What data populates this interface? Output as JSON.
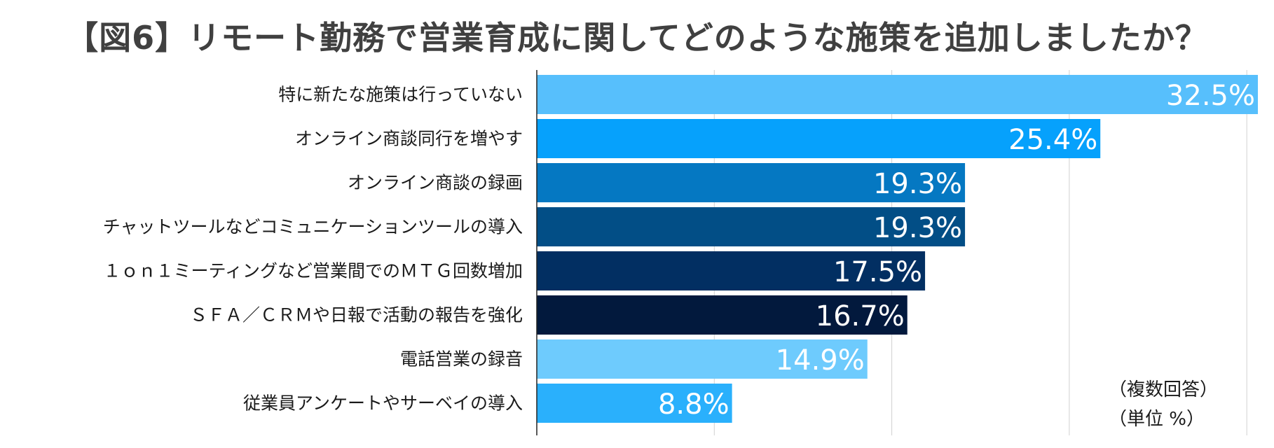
{
  "chart_data": {
    "type": "bar",
    "orientation": "horizontal",
    "title": "【図6】リモート勤務で営業育成に関してどのような施策を追加しましたか？",
    "categories": [
      "特に新たな施策は行っていない",
      "オンライン商談同行を増やす",
      "オンライン商談の録画",
      "チャットツールなどコミュニケーションツールの導入",
      "１ｏｎ１ミーティングなど営業間でのＭＴＧ回数増加",
      "ＳＦＡ／ＣＲＭや日報で活動の報告を強化",
      "電話営業の録音",
      "従業員アンケートやサーベイの導入"
    ],
    "values": [
      32.5,
      25.4,
      19.3,
      19.3,
      17.5,
      16.7,
      14.9,
      8.8
    ],
    "value_labels": [
      "32.5%",
      "25.4%",
      "19.3%",
      "19.3%",
      "17.5%",
      "16.7%",
      "14.9%",
      "8.8%"
    ],
    "bar_colors": [
      "#57bffc",
      "#06a1fc",
      "#0578c2",
      "#024e86",
      "#022f62",
      "#02193d",
      "#6ecbfd",
      "#2ab0fc"
    ],
    "xlim": [
      0,
      32.5
    ],
    "grid": true,
    "xlabel": "",
    "ylabel": ""
  },
  "notes": {
    "multiple_answers": "（複数回答）",
    "unit": "（単位 %）"
  }
}
